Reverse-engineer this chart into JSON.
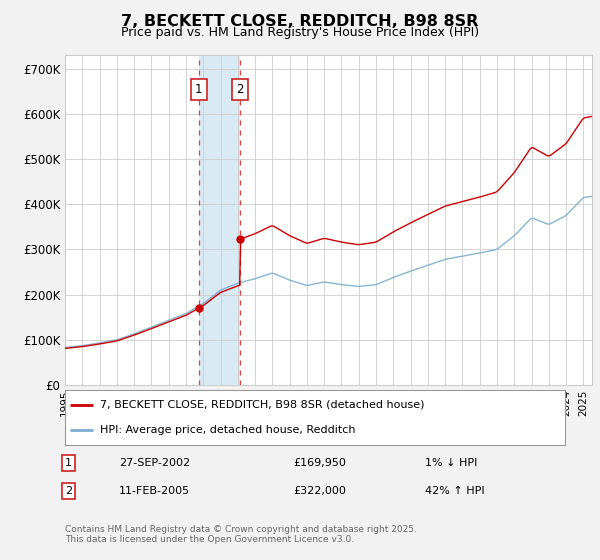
{
  "title": "7, BECKETT CLOSE, REDDITCH, B98 8SR",
  "subtitle": "Price paid vs. HM Land Registry's House Price Index (HPI)",
  "background_color": "#f2f2f2",
  "plot_bg_color": "#ffffff",
  "legend_label_red": "7, BECKETT CLOSE, REDDITCH, B98 8SR (detached house)",
  "legend_label_blue": "HPI: Average price, detached house, Redditch",
  "transaction1_date": "27-SEP-2002",
  "transaction1_price": "£169,950",
  "transaction1_hpi": "1% ↓ HPI",
  "transaction2_date": "11-FEB-2005",
  "transaction2_price": "£322,000",
  "transaction2_hpi": "42% ↑ HPI",
  "footer": "Contains HM Land Registry data © Crown copyright and database right 2025.\nThis data is licensed under the Open Government Licence v3.0.",
  "xmin": 1995,
  "xmax": 2025.5,
  "ymin": 0,
  "ymax": 730000,
  "transaction1_x": 2002.74,
  "transaction1_y": 169950,
  "transaction2_x": 2005.11,
  "transaction2_y": 322000,
  "shade_x1": 2002.74,
  "shade_x2": 2005.11,
  "grid_color": "#cccccc",
  "red_line_color": "#cc0000",
  "blue_line_color": "#7aadcf",
  "shade_color": "#daeaf5",
  "vline_color": "#dd4444",
  "marker_color": "#cc0000",
  "yticks": [
    0,
    100000,
    200000,
    300000,
    400000,
    500000,
    600000,
    700000
  ],
  "ytick_labels": [
    "£0",
    "£100K",
    "£200K",
    "£300K",
    "£400K",
    "£500K",
    "£600K",
    "£700K"
  ]
}
